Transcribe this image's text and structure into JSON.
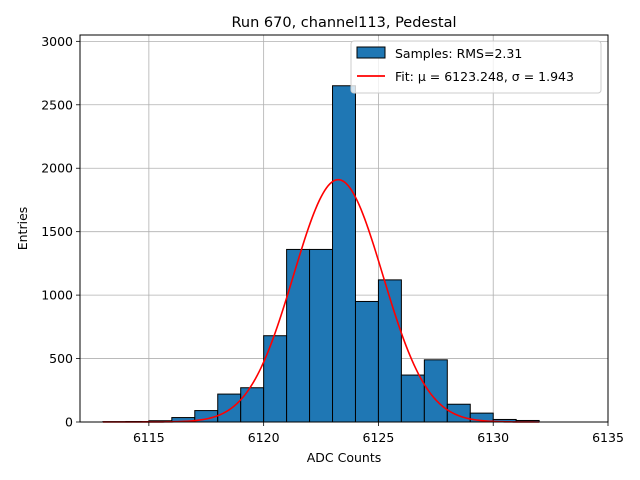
{
  "chart_data": {
    "type": "bar",
    "title": "Run 670, channel113, Pedestal",
    "xlabel": "ADC Counts",
    "ylabel": "Entries",
    "xlim": [
      6112,
      6135
    ],
    "ylim": [
      0,
      3050
    ],
    "xticks": [
      6115,
      6120,
      6125,
      6130,
      6135
    ],
    "yticks": [
      0,
      500,
      1000,
      1500,
      2000,
      2500,
      3000
    ],
    "grid": true,
    "legend_position": "top-right",
    "bar_color": "#1f77b4",
    "fit_color": "#ff0000",
    "bins": [
      {
        "x0": 6113,
        "x1": 6114,
        "value": 3
      },
      {
        "x0": 6114,
        "x1": 6115,
        "value": 4
      },
      {
        "x0": 6115,
        "x1": 6116,
        "value": 10
      },
      {
        "x0": 6116,
        "x1": 6117,
        "value": 35
      },
      {
        "x0": 6117,
        "x1": 6118,
        "value": 90
      },
      {
        "x0": 6118,
        "x1": 6119,
        "value": 220
      },
      {
        "x0": 6119,
        "x1": 6120,
        "value": 270
      },
      {
        "x0": 6120,
        "x1": 6121,
        "value": 680
      },
      {
        "x0": 6121,
        "x1": 6122,
        "value": 1360
      },
      {
        "x0": 6122,
        "x1": 6123,
        "value": 1360
      },
      {
        "x0": 6123,
        "x1": 6124,
        "value": 2650
      },
      {
        "x0": 6124,
        "x1": 6125,
        "value": 950
      },
      {
        "x0": 6125,
        "x1": 6126,
        "value": 1120
      },
      {
        "x0": 6126,
        "x1": 6127,
        "value": 370
      },
      {
        "x0": 6127,
        "x1": 6128,
        "value": 490
      },
      {
        "x0": 6128,
        "x1": 6129,
        "value": 140
      },
      {
        "x0": 6129,
        "x1": 6130,
        "value": 70
      },
      {
        "x0": 6130,
        "x1": 6131,
        "value": 20
      },
      {
        "x0": 6131,
        "x1": 6132,
        "value": 12
      }
    ],
    "fit": {
      "mu": 6123.248,
      "sigma": 1.943,
      "amplitude": 1910,
      "x_range": [
        6113,
        6132
      ]
    },
    "legend": {
      "samples_label": "Samples: RMS=2.31",
      "fit_label": "Fit: μ = 6123.248, σ = 1.943"
    }
  }
}
